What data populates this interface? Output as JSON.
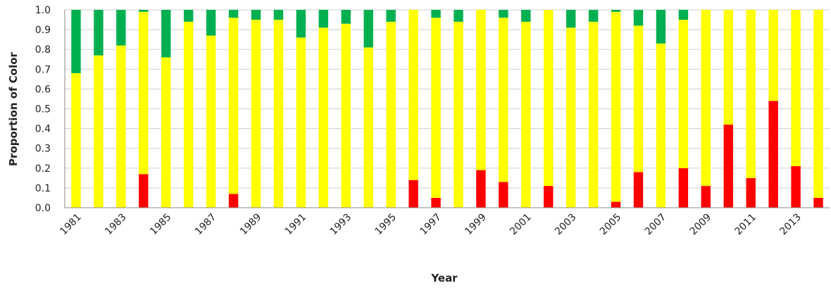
{
  "chart_data": {
    "type": "bar",
    "stacked": true,
    "xlabel": "Year",
    "ylabel": "Proportion of Color",
    "ylim": [
      0,
      1
    ],
    "y_ticks": [
      "0.0",
      "0.1",
      "0.2",
      "0.3",
      "0.4",
      "0.5",
      "0.6",
      "0.7",
      "0.8",
      "0.9",
      "1.0"
    ],
    "x_tick_labels": [
      "1981",
      "1983",
      "1985",
      "1987",
      "1989",
      "1991",
      "1993",
      "1995",
      "1997",
      "1999",
      "2001",
      "2003",
      "2005",
      "2007",
      "2009",
      "2011",
      "2013"
    ],
    "grid": true,
    "legend": "none",
    "categories": [
      "1981",
      "1982",
      "1983",
      "1984",
      "1985",
      "1986",
      "1987",
      "1988",
      "1989",
      "1990",
      "1991",
      "1992",
      "1993",
      "1994",
      "1995",
      "1996",
      "1997",
      "1998",
      "1999",
      "2000",
      "2001",
      "2002",
      "2003",
      "2004",
      "2005",
      "2006",
      "2007",
      "2008",
      "2009",
      "2010",
      "2011",
      "2012",
      "2013",
      "2014"
    ],
    "series": [
      {
        "color": "#ff0000",
        "values": [
          0,
          0,
          0,
          0.17,
          0,
          0,
          0,
          0.07,
          0,
          0,
          0,
          0,
          0,
          0,
          0,
          0.14,
          0.05,
          0,
          0.19,
          0.13,
          0,
          0.11,
          0,
          0,
          0.03,
          0.18,
          0,
          0.2,
          0.11,
          0.42,
          0.15,
          0.54,
          0.21,
          0.05
        ]
      },
      {
        "color": "#ffff00",
        "values": [
          0.68,
          0.77,
          0.82,
          0.82,
          0.76,
          0.94,
          0.87,
          0.89,
          0.95,
          0.95,
          0.86,
          0.91,
          0.93,
          0.81,
          0.94,
          0.86,
          0.91,
          0.94,
          0.81,
          0.83,
          0.94,
          0.89,
          0.91,
          0.94,
          0.96,
          0.74,
          0.83,
          0.75,
          0.89,
          0.58,
          0.85,
          0.46,
          0.79,
          0.95
        ]
      },
      {
        "color": "#00b050",
        "values": [
          0.32,
          0.23,
          0.18,
          0.01,
          0.24,
          0.06,
          0.13,
          0.04,
          0.05,
          0.05,
          0.14,
          0.09,
          0.07,
          0.19,
          0.06,
          0,
          0.04,
          0.06,
          0,
          0.04,
          0.06,
          0,
          0.09,
          0.06,
          0.01,
          0.08,
          0.17,
          0.05,
          0,
          0,
          0,
          0,
          0,
          0
        ]
      }
    ]
  }
}
